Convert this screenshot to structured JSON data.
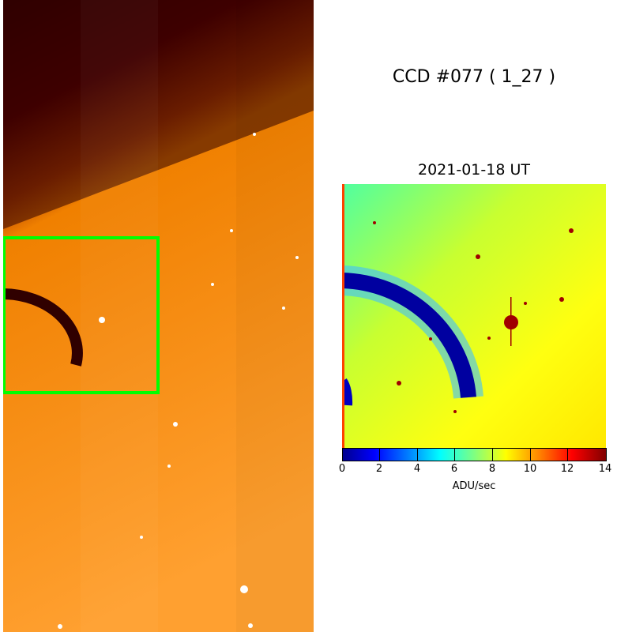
{
  "title": "CCD #077 ( 1_27 )",
  "subtitle": "2021-01-18 UT",
  "colorbar": {
    "label": "ADU/sec",
    "ticks": [
      "0",
      "2",
      "4",
      "6",
      "8",
      "10",
      "12",
      "14"
    ],
    "range": [
      0,
      14
    ],
    "colormap": "jet"
  },
  "colors": {
    "highlight_box": "#00ff00"
  }
}
